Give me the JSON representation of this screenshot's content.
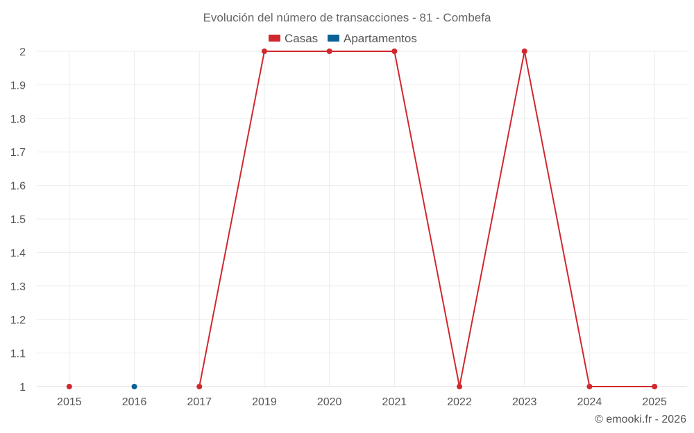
{
  "chart_data": {
    "type": "line",
    "title": "Evolución del número de transacciones - 81 - Combefa",
    "categories": [
      "2015",
      "2016",
      "2017",
      "2019",
      "2020",
      "2021",
      "2022",
      "2023",
      "2024",
      "2025"
    ],
    "series": [
      {
        "name": "Casas",
        "color": "#d0282d",
        "values": [
          1,
          null,
          1,
          2,
          2,
          2,
          1,
          2,
          1,
          1
        ]
      },
      {
        "name": "Apartamentos",
        "color": "#0b6196",
        "values": [
          null,
          1,
          null,
          null,
          null,
          null,
          null,
          null,
          null,
          null
        ]
      }
    ],
    "yticks": [
      "1",
      "1.1",
      "1.2",
      "1.3",
      "1.4",
      "1.5",
      "1.6",
      "1.7",
      "1.8",
      "1.9",
      "2"
    ],
    "ylim": [
      1,
      2
    ],
    "grid": true,
    "legend_position": "top-center"
  },
  "credit": "© emooki.fr - 2026"
}
